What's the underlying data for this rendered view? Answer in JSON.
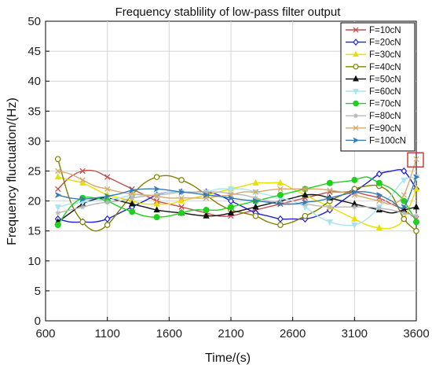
{
  "chart_data": {
    "type": "line",
    "title": "Frequency stablility of low-pass filter output",
    "xlabel": "Time/(s)",
    "ylabel": "Frequency fluctuation/(Hz)",
    "xlim": [
      600,
      3600
    ],
    "ylim": [
      0,
      50
    ],
    "xticks": [
      600,
      1100,
      1600,
      2100,
      2600,
      3100,
      3600
    ],
    "yticks": [
      0,
      5,
      10,
      15,
      20,
      25,
      30,
      35,
      40,
      45,
      50
    ],
    "grid": true,
    "legend_position": "top-right",
    "x": [
      700,
      800,
      900,
      1000,
      1100,
      1200,
      1300,
      1400,
      1500,
      1600,
      1700,
      1800,
      1900,
      2000,
      2100,
      2200,
      2300,
      2400,
      2500,
      2600,
      2700,
      2800,
      2900,
      3000,
      3100,
      3200,
      3300,
      3400,
      3500,
      3600
    ],
    "series": [
      {
        "name": "F=10cN",
        "color": "#c0504d",
        "marker": "x",
        "values": [
          22,
          24,
          25,
          25,
          24,
          23,
          22,
          21,
          20,
          19.5,
          19,
          18.5,
          18,
          17.5,
          17.5,
          18,
          18.5,
          19,
          19.5,
          20,
          20.5,
          21,
          21.5,
          21.5,
          21.5,
          21,
          20.5,
          19.5,
          18.5,
          17
        ]
      },
      {
        "name": "F=20cN",
        "color": "#1f1fe0",
        "marker": "diamond",
        "values": [
          17,
          16.5,
          16.5,
          16.5,
          17,
          18,
          19,
          20,
          21,
          21.5,
          21.5,
          21.5,
          21.5,
          21,
          20,
          19,
          18,
          17.5,
          17,
          17,
          17,
          17.5,
          18.5,
          20,
          21.5,
          23,
          24.5,
          25,
          25,
          22
        ]
      },
      {
        "name": "F=30cN",
        "color": "#e8e000",
        "marker": "triangle",
        "values": [
          24,
          23.5,
          23,
          22,
          21,
          20.5,
          20,
          19.5,
          19.5,
          19.5,
          20,
          20.5,
          21,
          21.5,
          22,
          22.5,
          23,
          23,
          23,
          22,
          21,
          20,
          19,
          18,
          17,
          16,
          15.5,
          15.5,
          17,
          22
        ]
      },
      {
        "name": "F=40cN",
        "color": "#808000",
        "marker": "circle",
        "values": [
          27,
          20,
          16.5,
          15,
          16,
          18.5,
          21,
          23,
          24,
          24.2,
          23.5,
          22.5,
          21,
          19.5,
          18.5,
          18,
          17.5,
          16.5,
          16,
          16.5,
          17.5,
          18.5,
          20,
          21,
          22,
          22.5,
          22.5,
          21,
          17,
          15
        ]
      },
      {
        "name": "F=50cN",
        "color": "#111111",
        "marker": "triangle",
        "values": [
          16.5,
          18,
          19.5,
          20.3,
          20.5,
          20,
          19.5,
          19,
          18.5,
          18.2,
          18,
          17.7,
          17.5,
          17.6,
          18,
          18.5,
          19,
          19.5,
          20,
          20.5,
          21,
          21,
          20.5,
          20,
          19.5,
          19,
          18.5,
          18,
          18.5,
          19
        ]
      },
      {
        "name": "F=60cN",
        "color": "#a8e4f4",
        "marker": "triangle-down",
        "values": [
          19,
          19.5,
          19.8,
          20,
          20.2,
          20.5,
          21,
          21,
          21,
          21.5,
          21.5,
          21.5,
          21.5,
          22,
          22,
          22,
          21.5,
          21,
          20.5,
          20,
          19,
          17.5,
          16.5,
          16,
          16,
          17,
          19,
          21,
          23.5,
          24
        ]
      },
      {
        "name": "F=70cN",
        "color": "#1fd01f",
        "marker": "circle-filled",
        "values": [
          16,
          19,
          20.5,
          20.5,
          20,
          19,
          18.2,
          17.5,
          17.3,
          17.5,
          18,
          18.5,
          18.5,
          18.5,
          19,
          19.5,
          20,
          20.5,
          21,
          21.5,
          22,
          22.5,
          23,
          23.2,
          23.5,
          24,
          23,
          22,
          20,
          16.5
        ]
      },
      {
        "name": "F=80cN",
        "color": "#b8b8b8",
        "marker": "star",
        "values": [
          18,
          18.5,
          19,
          19.5,
          19.8,
          20,
          20.5,
          20.8,
          21,
          21.2,
          21.5,
          21.5,
          21.5,
          21.5,
          21.2,
          21,
          20.5,
          20,
          19.8,
          19.5,
          19.5,
          19.2,
          19,
          19,
          19,
          19,
          18.8,
          18.5,
          18,
          17.5
        ]
      },
      {
        "name": "F=90cN",
        "color": "#d6aa6e",
        "marker": "x",
        "values": [
          25,
          24.5,
          23.5,
          22.5,
          22,
          21.5,
          21.2,
          21,
          20.8,
          20.5,
          20.5,
          20.5,
          20.5,
          20.8,
          21,
          21.5,
          21.5,
          21.8,
          22,
          22,
          22,
          22,
          21.8,
          21.5,
          21,
          20.5,
          20,
          19.5,
          21,
          27
        ]
      },
      {
        "name": "F=100cN",
        "color": "#3a7ab2",
        "marker": "arrow",
        "values": [
          21,
          20.5,
          20.3,
          20.5,
          20.8,
          21.2,
          21.8,
          22,
          22,
          21.8,
          21.5,
          21.3,
          21,
          20.8,
          20.5,
          20.2,
          20,
          19.8,
          19.5,
          19.5,
          19.8,
          20,
          20.5,
          21,
          21.5,
          21.5,
          21,
          20,
          19,
          24
        ]
      }
    ],
    "annotation": {
      "type": "highlight-box",
      "x": 3600,
      "y": 27,
      "color": "#c0392b"
    }
  }
}
